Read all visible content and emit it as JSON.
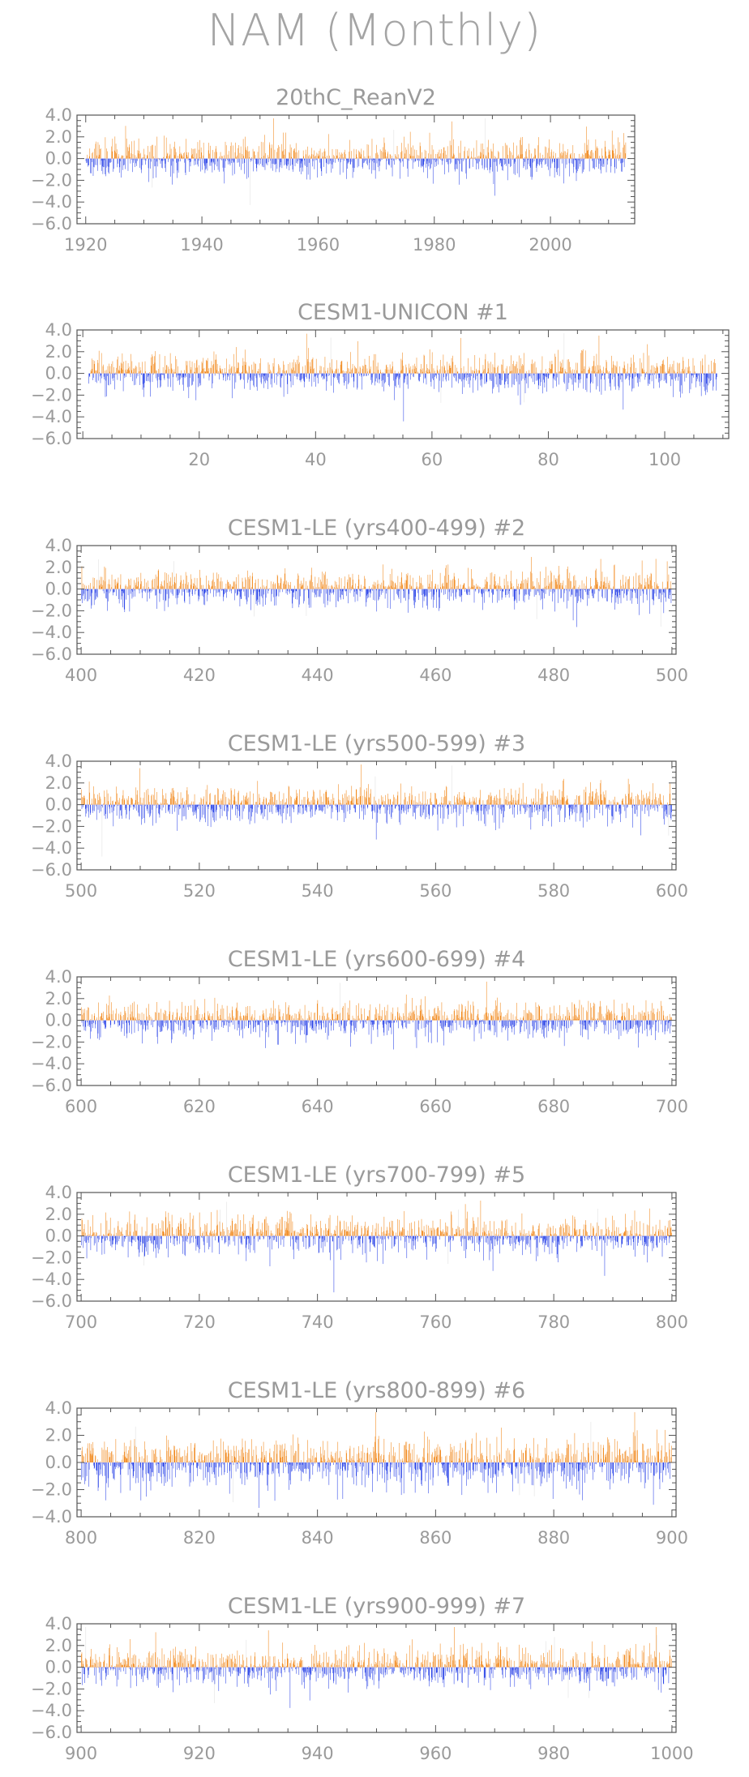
{
  "page_title": "NAM (Monthly)",
  "colors": {
    "positive": "#f07f0a",
    "negative": "#1c37e6",
    "axis": "#555555",
    "text": "#9a9a9a"
  },
  "chart_data": [
    {
      "type": "bar",
      "title": "20thC_ReanV2",
      "x_start": 1920,
      "x_end": 2012,
      "xlim": [
        1918.5,
        2014.5
      ],
      "xticks": [
        1920,
        1940,
        1960,
        1980,
        2000
      ],
      "ylim": [
        -6.0,
        4.0
      ],
      "yticks": [
        4.0,
        2.0,
        0.0,
        -2.0,
        -4.0,
        -6.0
      ],
      "seed": 11
    },
    {
      "type": "bar",
      "title": "CESM1-UNICON          #1",
      "x_start": 1,
      "x_end": 108,
      "xlim": [
        -1,
        111
      ],
      "xticks": [
        20,
        40,
        60,
        80,
        100
      ],
      "ylim": [
        -6.0,
        4.0
      ],
      "yticks": [
        4.0,
        2.0,
        0.0,
        -2.0,
        -4.0,
        -6.0
      ],
      "seed": 23
    },
    {
      "type": "bar",
      "title": "CESM1-LE (yrs400-499) #2",
      "x_start": 400,
      "x_end": 499,
      "xlim": [
        399.3,
        500.7
      ],
      "xticks": [
        400,
        420,
        440,
        460,
        480,
        500
      ],
      "ylim": [
        -6.0,
        4.0
      ],
      "yticks": [
        4.0,
        2.0,
        0.0,
        -2.0,
        -4.0,
        -6.0
      ],
      "seed": 37
    },
    {
      "type": "bar",
      "title": "CESM1-LE (yrs500-599) #3",
      "x_start": 500,
      "x_end": 599,
      "xlim": [
        499.3,
        600.7
      ],
      "xticks": [
        500,
        520,
        540,
        560,
        580,
        600
      ],
      "ylim": [
        -6.0,
        4.0
      ],
      "yticks": [
        4.0,
        2.0,
        0.0,
        -2.0,
        -4.0,
        -6.0
      ],
      "seed": 41
    },
    {
      "type": "bar",
      "title": "CESM1-LE (yrs600-699) #4",
      "x_start": 600,
      "x_end": 699,
      "xlim": [
        599.3,
        700.7
      ],
      "xticks": [
        600,
        620,
        640,
        660,
        680,
        700
      ],
      "ylim": [
        -6.0,
        4.0
      ],
      "yticks": [
        4.0,
        2.0,
        0.0,
        -2.0,
        -4.0,
        -6.0
      ],
      "seed": 53
    },
    {
      "type": "bar",
      "title": "CESM1-LE (yrs700-799) #5",
      "x_start": 700,
      "x_end": 799,
      "xlim": [
        699.3,
        800.7
      ],
      "xticks": [
        700,
        720,
        740,
        760,
        780,
        800
      ],
      "ylim": [
        -6.0,
        4.0
      ],
      "yticks": [
        4.0,
        2.0,
        0.0,
        -2.0,
        -4.0,
        -6.0
      ],
      "seed": 67
    },
    {
      "type": "bar",
      "title": "CESM1-LE (yrs800-899) #6",
      "x_start": 800,
      "x_end": 899,
      "xlim": [
        799.3,
        900.7
      ],
      "xticks": [
        800,
        820,
        840,
        860,
        880,
        900
      ],
      "ylim": [
        -4.0,
        4.0
      ],
      "yticks": [
        4.0,
        2.0,
        0.0,
        -2.0,
        -4.0
      ],
      "seed": 79
    },
    {
      "type": "bar",
      "title": "CESM1-LE (yrs900-999) #7",
      "x_start": 900,
      "x_end": 999,
      "xlim": [
        899.3,
        1000.7
      ],
      "xticks": [
        900,
        920,
        940,
        960,
        980,
        1000
      ],
      "ylim": [
        -6.0,
        4.0
      ],
      "yticks": [
        4.0,
        2.0,
        0.0,
        -2.0,
        -4.0,
        -6.0
      ],
      "seed": 97
    }
  ]
}
